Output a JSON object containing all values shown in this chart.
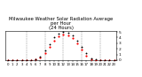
{
  "title": "Milwaukee Weather Solar Radiation Average\nper Hour\n(24 Hours)",
  "title_fontsize": 3.8,
  "hours": [
    0,
    1,
    2,
    3,
    4,
    5,
    6,
    7,
    8,
    9,
    10,
    11,
    12,
    13,
    14,
    15,
    16,
    17,
    18,
    19,
    20,
    21,
    22,
    23
  ],
  "solar_avg": [
    0,
    0,
    0,
    0,
    0,
    2,
    8,
    45,
    130,
    240,
    350,
    430,
    460,
    435,
    385,
    295,
    190,
    80,
    18,
    2,
    0,
    0,
    0,
    0
  ],
  "solar_max": [
    0,
    0,
    0,
    0,
    0,
    4,
    15,
    65,
    170,
    285,
    400,
    475,
    505,
    485,
    440,
    350,
    240,
    120,
    35,
    6,
    0,
    0,
    0,
    0
  ],
  "dot_color_avg": "#ff0000",
  "dot_color_max": "#000000",
  "grid_color": "#888888",
  "background": "#ffffff",
  "ylim": [
    0,
    520
  ],
  "yticks": [
    0,
    100,
    200,
    300,
    400,
    500
  ],
  "ytick_labels": [
    "0",
    "1",
    "2",
    "3",
    "4",
    "5"
  ],
  "ytick_fontsize": 3.2,
  "xtick_fontsize": 2.8,
  "dot_size_avg": 2.5,
  "dot_size_max": 1.8,
  "vline_positions": [
    4,
    8,
    12,
    16,
    20
  ],
  "xlim": [
    -0.5,
    23.5
  ]
}
